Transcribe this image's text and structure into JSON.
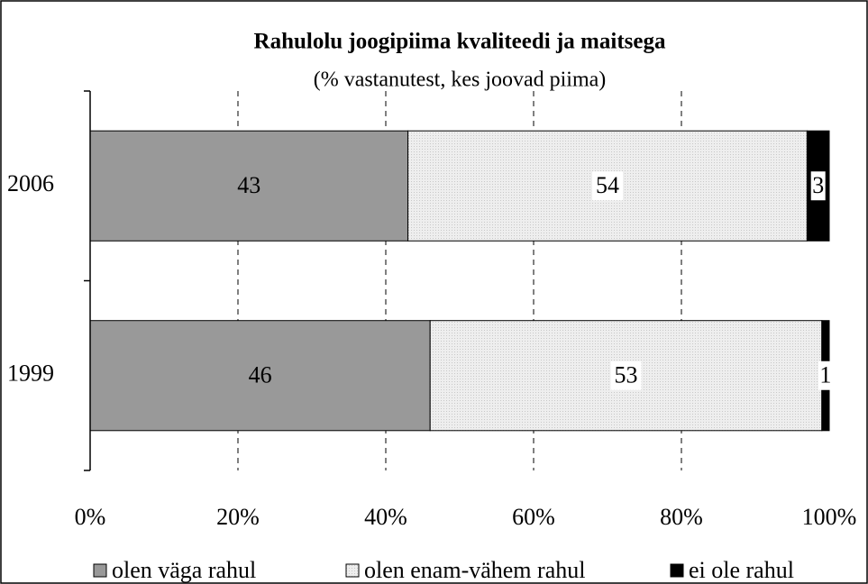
{
  "chart_data": {
    "type": "stacked-bar-horizontal",
    "title": "Rahulolu joogipiima kvaliteedi ja maitsega",
    "subtitle": "(% vastanutest, kes joovad piima)",
    "categories": [
      "2006",
      "1999"
    ],
    "series": [
      {
        "name": "olen väga rahul",
        "color": "#999999",
        "values": [
          43,
          46
        ]
      },
      {
        "name": "olen enam-vähem rahul",
        "color": "#e4e4e4",
        "values": [
          54,
          53
        ]
      },
      {
        "name": "ei ole rahul",
        "color": "#000000",
        "values": [
          3,
          1
        ]
      }
    ],
    "xlim": [
      0,
      100
    ],
    "xticks": [
      {
        "value": 0,
        "label": "0%"
      },
      {
        "value": 20,
        "label": "20%"
      },
      {
        "value": 40,
        "label": "40%"
      },
      {
        "value": 60,
        "label": "60%"
      },
      {
        "value": 80,
        "label": "80%"
      },
      {
        "value": 100,
        "label": "100%"
      }
    ],
    "grid": true,
    "legend": "bottom"
  }
}
